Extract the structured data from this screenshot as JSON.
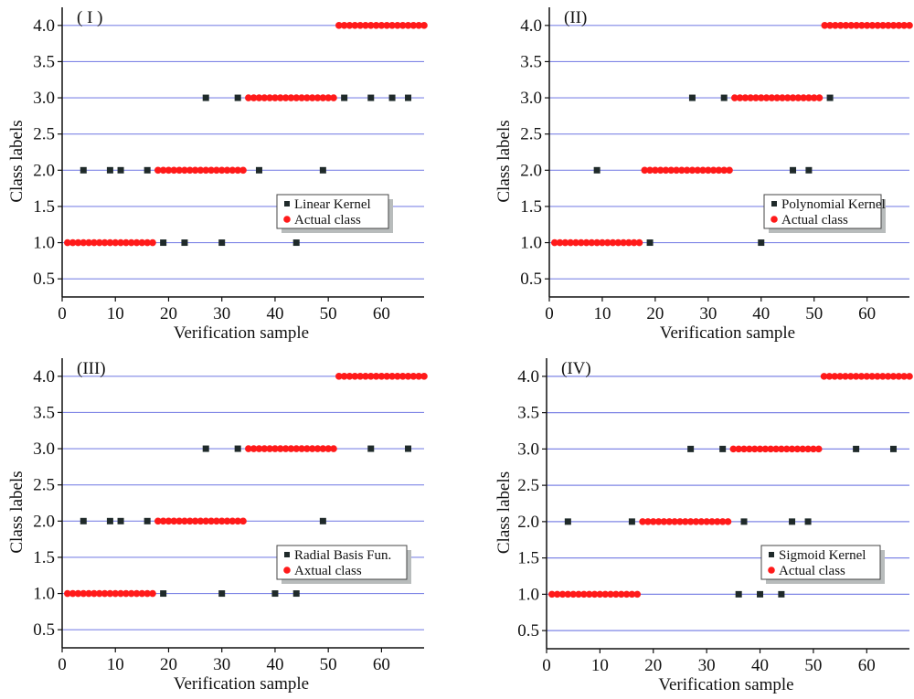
{
  "colors": {
    "actual": "#ff1a1a",
    "predicted": "#1f2a2a",
    "grid": "#7f86e6",
    "axis": "#111111",
    "legend_shadow": "#b8bcbc"
  },
  "chart_data": [
    {
      "type": "scatter",
      "panel_label": "( I )",
      "xlabel": "Verification sample",
      "ylabel": "Class labels",
      "xlim": [
        0,
        68
      ],
      "ylim": [
        0.25,
        4.25
      ],
      "xticks": [
        "0",
        "10",
        "20",
        "30",
        "40",
        "50",
        "60"
      ],
      "yticks": [
        "0.5",
        "1.0",
        "1.5",
        "2.0",
        "2.5",
        "3.0",
        "3.5",
        "4.0"
      ],
      "grid": "horizontal",
      "legend_position": "center-right",
      "legend": [
        "Linear Kernel",
        "Actual class"
      ],
      "actual_class_ranges": [
        {
          "class": 1,
          "from": 1,
          "to": 17
        },
        {
          "class": 2,
          "from": 18,
          "to": 34
        },
        {
          "class": 3,
          "from": 35,
          "to": 51
        },
        {
          "class": 4,
          "from": 52,
          "to": 68
        }
      ],
      "misclassified": [
        {
          "x": 4,
          "y": 2
        },
        {
          "x": 9,
          "y": 2
        },
        {
          "x": 11,
          "y": 2
        },
        {
          "x": 16,
          "y": 2
        },
        {
          "x": 19,
          "y": 1
        },
        {
          "x": 23,
          "y": 1
        },
        {
          "x": 30,
          "y": 1
        },
        {
          "x": 27,
          "y": 3
        },
        {
          "x": 33,
          "y": 3
        },
        {
          "x": 37,
          "y": 2
        },
        {
          "x": 44,
          "y": 1
        },
        {
          "x": 49,
          "y": 2
        },
        {
          "x": 53,
          "y": 3
        },
        {
          "x": 58,
          "y": 3
        },
        {
          "x": 62,
          "y": 3
        },
        {
          "x": 65,
          "y": 3
        }
      ]
    },
    {
      "type": "scatter",
      "panel_label": "(II)",
      "xlabel": "Verification sample",
      "ylabel": "Class labels",
      "xlim": [
        0,
        68
      ],
      "ylim": [
        0.25,
        4.25
      ],
      "xticks": [
        "0",
        "10",
        "20",
        "30",
        "40",
        "50",
        "60"
      ],
      "yticks": [
        "0.5",
        "1.0",
        "1.5",
        "2.0",
        "2.5",
        "3.0",
        "3.5",
        "4.0"
      ],
      "grid": "horizontal",
      "legend_position": "center-right",
      "legend": [
        "Polynomial Kernel",
        "Actual class"
      ],
      "actual_class_ranges": [
        {
          "class": 1,
          "from": 1,
          "to": 17
        },
        {
          "class": 2,
          "from": 18,
          "to": 34
        },
        {
          "class": 3,
          "from": 35,
          "to": 51
        },
        {
          "class": 4,
          "from": 52,
          "to": 68
        }
      ],
      "misclassified": [
        {
          "x": 9,
          "y": 2
        },
        {
          "x": 19,
          "y": 1
        },
        {
          "x": 27,
          "y": 3
        },
        {
          "x": 33,
          "y": 3
        },
        {
          "x": 40,
          "y": 1
        },
        {
          "x": 46,
          "y": 2
        },
        {
          "x": 49,
          "y": 2
        },
        {
          "x": 53,
          "y": 3
        }
      ]
    },
    {
      "type": "scatter",
      "panel_label": "(III)",
      "xlabel": "Verification sample",
      "ylabel": "Class labels",
      "xlim": [
        0,
        68
      ],
      "ylim": [
        0.25,
        4.25
      ],
      "xticks": [
        "0",
        "10",
        "20",
        "30",
        "40",
        "50",
        "60"
      ],
      "yticks": [
        "0.5",
        "1.0",
        "1.5",
        "2.0",
        "2.5",
        "3.0",
        "3.5",
        "4.0"
      ],
      "grid": "horizontal",
      "legend_position": "center-right",
      "legend": [
        "Radial Basis Fun.",
        "Axtual class"
      ],
      "actual_class_ranges": [
        {
          "class": 1,
          "from": 1,
          "to": 17
        },
        {
          "class": 2,
          "from": 18,
          "to": 34
        },
        {
          "class": 3,
          "from": 35,
          "to": 51
        },
        {
          "class": 4,
          "from": 52,
          "to": 68
        }
      ],
      "misclassified": [
        {
          "x": 4,
          "y": 2
        },
        {
          "x": 9,
          "y": 2
        },
        {
          "x": 11,
          "y": 2
        },
        {
          "x": 16,
          "y": 2
        },
        {
          "x": 19,
          "y": 1
        },
        {
          "x": 30,
          "y": 1
        },
        {
          "x": 27,
          "y": 3
        },
        {
          "x": 33,
          "y": 3
        },
        {
          "x": 40,
          "y": 1
        },
        {
          "x": 44,
          "y": 1
        },
        {
          "x": 49,
          "y": 2
        },
        {
          "x": 58,
          "y": 3
        },
        {
          "x": 65,
          "y": 3
        }
      ]
    },
    {
      "type": "scatter",
      "panel_label": "(IV)",
      "xlabel": "Verification sample",
      "ylabel": "Class labels",
      "xlim": [
        0,
        68
      ],
      "ylim": [
        0.25,
        4.25
      ],
      "xticks": [
        "0",
        "10",
        "20",
        "30",
        "40",
        "50",
        "60"
      ],
      "yticks": [
        "0.5",
        "1.0",
        "1.5",
        "2.0",
        "2.5",
        "3.0",
        "3.5",
        "4.0"
      ],
      "grid": "horizontal",
      "legend_position": "center-right",
      "legend": [
        "Sigmoid Kernel",
        "Actual class"
      ],
      "actual_class_ranges": [
        {
          "class": 1,
          "from": 1,
          "to": 17
        },
        {
          "class": 2,
          "from": 18,
          "to": 34
        },
        {
          "class": 3,
          "from": 35,
          "to": 51
        },
        {
          "class": 4,
          "from": 52,
          "to": 68
        }
      ],
      "misclassified": [
        {
          "x": 4,
          "y": 2
        },
        {
          "x": 16,
          "y": 2
        },
        {
          "x": 27,
          "y": 3
        },
        {
          "x": 33,
          "y": 3
        },
        {
          "x": 36,
          "y": 1
        },
        {
          "x": 37,
          "y": 2
        },
        {
          "x": 40,
          "y": 1
        },
        {
          "x": 44,
          "y": 1
        },
        {
          "x": 46,
          "y": 2
        },
        {
          "x": 49,
          "y": 2
        },
        {
          "x": 58,
          "y": 3
        },
        {
          "x": 65,
          "y": 3
        }
      ]
    }
  ]
}
